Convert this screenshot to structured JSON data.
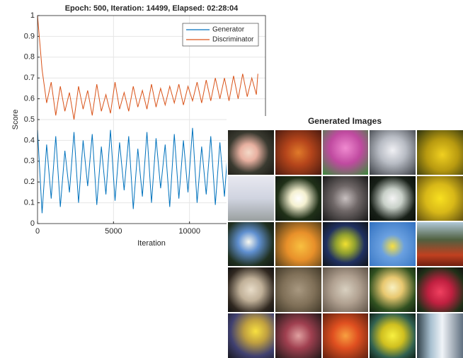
{
  "chart_data": {
    "type": "line",
    "title": "Epoch: 500, Iteration: 14499, Elapsed: 02:28:04",
    "x_label": "Iteration",
    "y_label": "Score",
    "x": [
      0,
      300,
      600,
      900,
      1200,
      1500,
      1800,
      2100,
      2400,
      2700,
      3000,
      3300,
      3600,
      3900,
      4200,
      4500,
      4800,
      5100,
      5400,
      5700,
      6000,
      6300,
      6600,
      6900,
      7200,
      7500,
      7800,
      8100,
      8400,
      8700,
      9000,
      9300,
      9600,
      9900,
      10200,
      10500,
      10800,
      11100,
      11400,
      11700,
      12000,
      12300,
      12600,
      12900,
      13200,
      13500,
      13800,
      14100,
      14400,
      14499
    ],
    "series": [
      {
        "name": "Generator",
        "color": "#0072bd",
        "values": [
          0.45,
          0.05,
          0.38,
          0.12,
          0.42,
          0.08,
          0.35,
          0.15,
          0.44,
          0.1,
          0.4,
          0.18,
          0.43,
          0.09,
          0.37,
          0.14,
          0.45,
          0.11,
          0.39,
          0.16,
          0.42,
          0.07,
          0.36,
          0.13,
          0.44,
          0.1,
          0.41,
          0.17,
          0.38,
          0.08,
          0.43,
          0.12,
          0.4,
          0.15,
          0.46,
          0.1,
          0.37,
          0.14,
          0.42,
          0.09,
          0.39,
          0.13,
          0.44,
          0.11,
          0.36,
          0.16,
          0.41,
          0.1,
          0.38,
          0.13
        ]
      },
      {
        "name": "Discriminator",
        "color": "#d95319",
        "values": [
          1.0,
          0.74,
          0.58,
          0.68,
          0.52,
          0.66,
          0.54,
          0.63,
          0.5,
          0.66,
          0.55,
          0.64,
          0.52,
          0.67,
          0.54,
          0.62,
          0.53,
          0.68,
          0.55,
          0.63,
          0.54,
          0.66,
          0.56,
          0.64,
          0.55,
          0.67,
          0.56,
          0.65,
          0.57,
          0.66,
          0.58,
          0.67,
          0.57,
          0.66,
          0.59,
          0.68,
          0.58,
          0.69,
          0.59,
          0.7,
          0.6,
          0.7,
          0.59,
          0.71,
          0.6,
          0.72,
          0.61,
          0.7,
          0.62,
          0.72
        ]
      }
    ],
    "xlim": [
      0,
      15000
    ],
    "xticks": [
      0,
      5000,
      10000
    ],
    "ylim": [
      0,
      1
    ],
    "yticks": [
      0,
      0.1,
      0.2,
      0.3,
      0.4,
      0.5,
      0.6,
      0.7,
      0.8,
      0.9,
      1
    ],
    "grid": true,
    "legend": "top-right"
  },
  "image_panel": {
    "title": "Generated Images"
  }
}
